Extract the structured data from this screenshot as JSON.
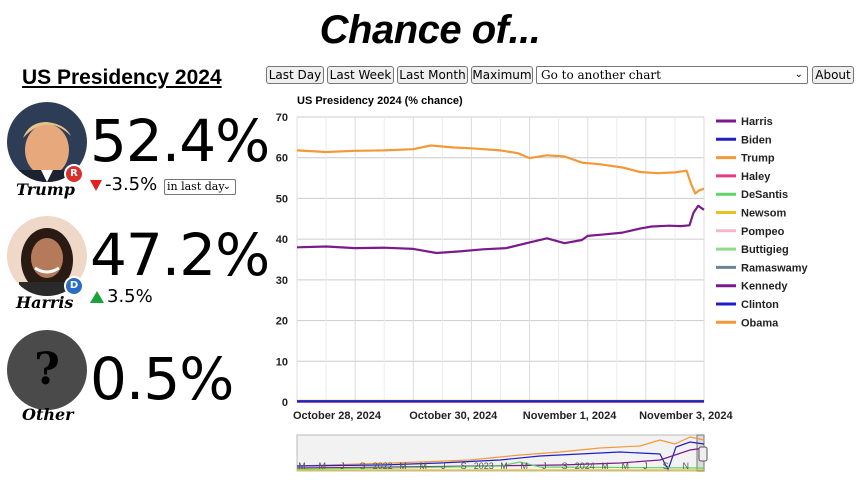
{
  "site_title": "Chance of...",
  "page_title": "US Presidency 2024",
  "candidates": [
    {
      "name": "Trump",
      "pct": "52.4%",
      "change": "-3.5%",
      "direction": "down",
      "party": "R",
      "party_color": "#d8302a"
    },
    {
      "name": "Harris",
      "pct": "47.2%",
      "change": "3.5%",
      "direction": "up",
      "party": "D",
      "party_color": "#2c6dc4"
    },
    {
      "name": "Other",
      "pct": "0.5%",
      "avatar_symbol": "?"
    }
  ],
  "period_select": {
    "selected": "in last day"
  },
  "toolbar": {
    "last_day": "Last Day",
    "last_week": "Last Week",
    "last_month": "Last Month",
    "maximum": "Maximum",
    "goto_placeholder": "Go to another chart",
    "about": "About"
  },
  "chart_data": {
    "type": "line",
    "title": "US Presidency 2024 (% chance)",
    "ylim": [
      0,
      70
    ],
    "y_ticks": [
      0,
      10,
      20,
      30,
      40,
      50,
      60,
      70
    ],
    "x_tick_labels": [
      "October 28, 2024",
      "October 30, 2024",
      "November 1, 2024",
      "November 3, 2024"
    ],
    "x_range_days": [
      0,
      7
    ],
    "series": [
      {
        "name": "Harris",
        "color": "#7b1a8c",
        "points": [
          [
            0,
            38.0
          ],
          [
            0.5,
            38.2
          ],
          [
            1,
            37.8
          ],
          [
            1.5,
            37.9
          ],
          [
            2,
            37.6
          ],
          [
            2.4,
            36.6
          ],
          [
            2.8,
            37.0
          ],
          [
            3.2,
            37.5
          ],
          [
            3.6,
            37.8
          ],
          [
            4,
            39.2
          ],
          [
            4.3,
            40.2
          ],
          [
            4.6,
            39.0
          ],
          [
            4.9,
            39.8
          ],
          [
            5,
            40.8
          ],
          [
            5.3,
            41.2
          ],
          [
            5.6,
            41.6
          ],
          [
            5.9,
            42.6
          ],
          [
            6.1,
            43.1
          ],
          [
            6.4,
            43.3
          ],
          [
            6.6,
            43.2
          ],
          [
            6.75,
            43.4
          ],
          [
            6.82,
            46.5
          ],
          [
            6.9,
            48.2
          ],
          [
            7,
            47.2
          ]
        ]
      },
      {
        "name": "Biden",
        "color": "#1f1fc8",
        "points": [
          [
            0,
            0.2
          ],
          [
            7,
            0.2
          ]
        ]
      },
      {
        "name": "Trump",
        "color": "#f3993a",
        "points": [
          [
            0,
            61.8
          ],
          [
            0.5,
            61.4
          ],
          [
            1,
            61.7
          ],
          [
            1.5,
            61.8
          ],
          [
            2,
            62.1
          ],
          [
            2.3,
            63.0
          ],
          [
            2.7,
            62.5
          ],
          [
            3,
            62.3
          ],
          [
            3.5,
            61.8
          ],
          [
            3.8,
            61.1
          ],
          [
            4,
            59.9
          ],
          [
            4.3,
            60.6
          ],
          [
            4.6,
            60.3
          ],
          [
            4.9,
            58.8
          ],
          [
            5.2,
            58.4
          ],
          [
            5.6,
            57.6
          ],
          [
            5.9,
            56.5
          ],
          [
            6.2,
            56.2
          ],
          [
            6.5,
            56.4
          ],
          [
            6.7,
            56.8
          ],
          [
            6.78,
            53.5
          ],
          [
            6.85,
            51.2
          ],
          [
            6.92,
            52.0
          ],
          [
            7,
            52.4
          ]
        ]
      },
      {
        "name": "Haley",
        "color": "#e23b8a",
        "points": [
          [
            0,
            0.1
          ],
          [
            7,
            0.1
          ]
        ]
      },
      {
        "name": "DeSantis",
        "color": "#5ed46b",
        "points": [
          [
            0,
            0.1
          ],
          [
            7,
            0.1
          ]
        ]
      },
      {
        "name": "Newsom",
        "color": "#e8c21e",
        "points": [
          [
            0,
            0.3
          ],
          [
            7,
            0.3
          ]
        ]
      },
      {
        "name": "Pompeo",
        "color": "#f5b8c8",
        "points": [
          [
            0,
            0.05
          ],
          [
            7,
            0.05
          ]
        ]
      },
      {
        "name": "Buttigieg",
        "color": "#8fdc8a",
        "points": [
          [
            0,
            0.05
          ],
          [
            7,
            0.05
          ]
        ]
      },
      {
        "name": "Ramaswamy",
        "color": "#6c8494",
        "points": [
          [
            0,
            0.05
          ],
          [
            7,
            0.05
          ]
        ]
      },
      {
        "name": "Kennedy",
        "color": "#7b1a8c",
        "points": [
          [
            0,
            0.1
          ],
          [
            7,
            0.1
          ]
        ]
      },
      {
        "name": "Clinton",
        "color": "#1f1fc8",
        "points": [
          [
            0,
            0.05
          ],
          [
            7,
            0.05
          ]
        ]
      },
      {
        "name": "Obama",
        "color": "#f3993a",
        "points": [
          [
            0,
            0.2
          ],
          [
            7,
            0.2
          ]
        ]
      }
    ],
    "navigator_labels": [
      "M",
      "M",
      "J",
      "S",
      "2022",
      "M",
      "M",
      "J",
      "S",
      "2023",
      "M",
      "M",
      "J",
      "S",
      "2024",
      "M",
      "M",
      "J",
      "S",
      "N"
    ]
  }
}
